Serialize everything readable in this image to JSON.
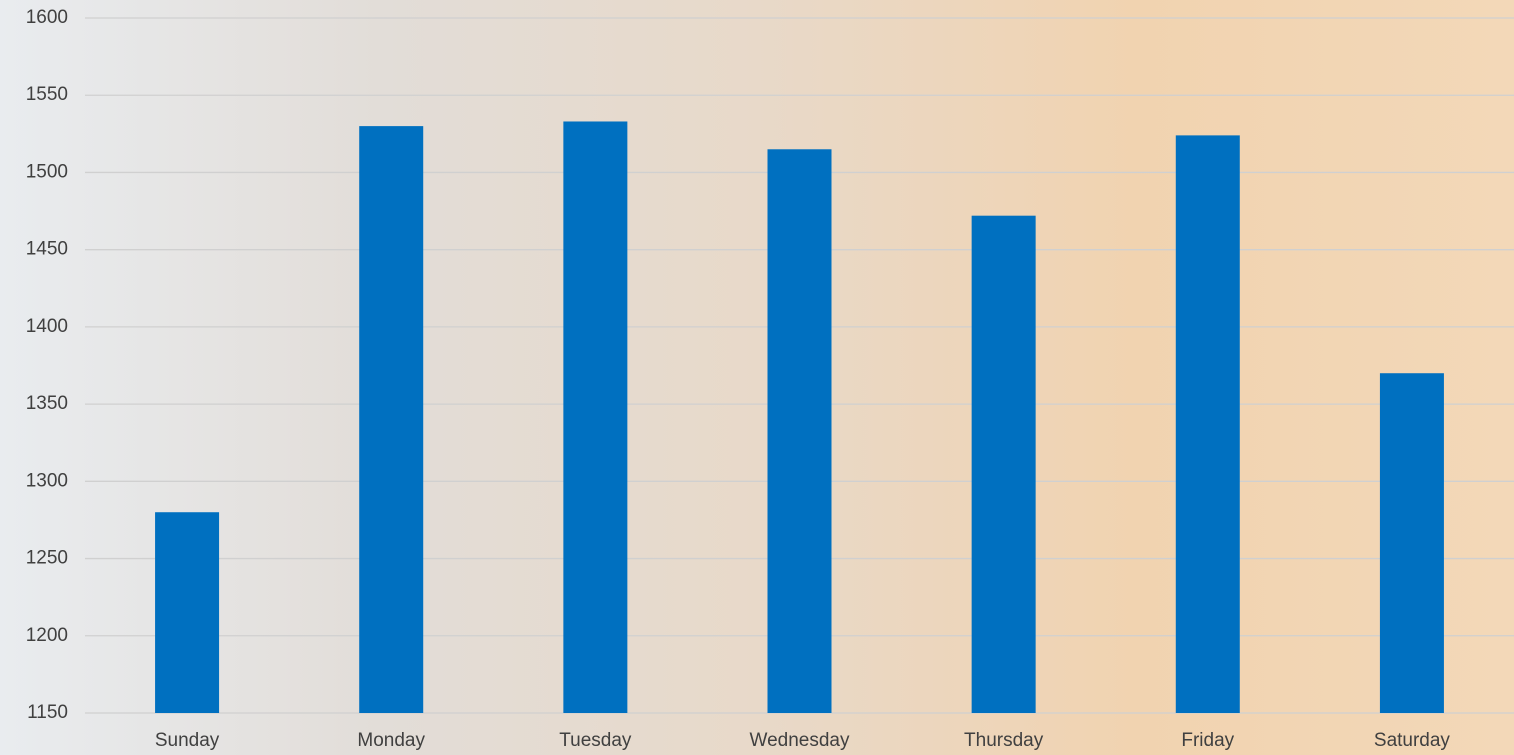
{
  "chart_data": {
    "type": "bar",
    "categories": [
      "Sunday",
      "Monday",
      "Tuesday",
      "Wednesday",
      "Thursday",
      "Friday",
      "Saturday"
    ],
    "values": [
      1280,
      1530,
      1533,
      1515,
      1472,
      1524,
      1370
    ],
    "color": "#0070c0",
    "ylim": [
      1150,
      1600
    ],
    "yticks": [
      1150,
      1200,
      1250,
      1300,
      1350,
      1400,
      1450,
      1500,
      1550,
      1600
    ],
    "grid": true
  }
}
